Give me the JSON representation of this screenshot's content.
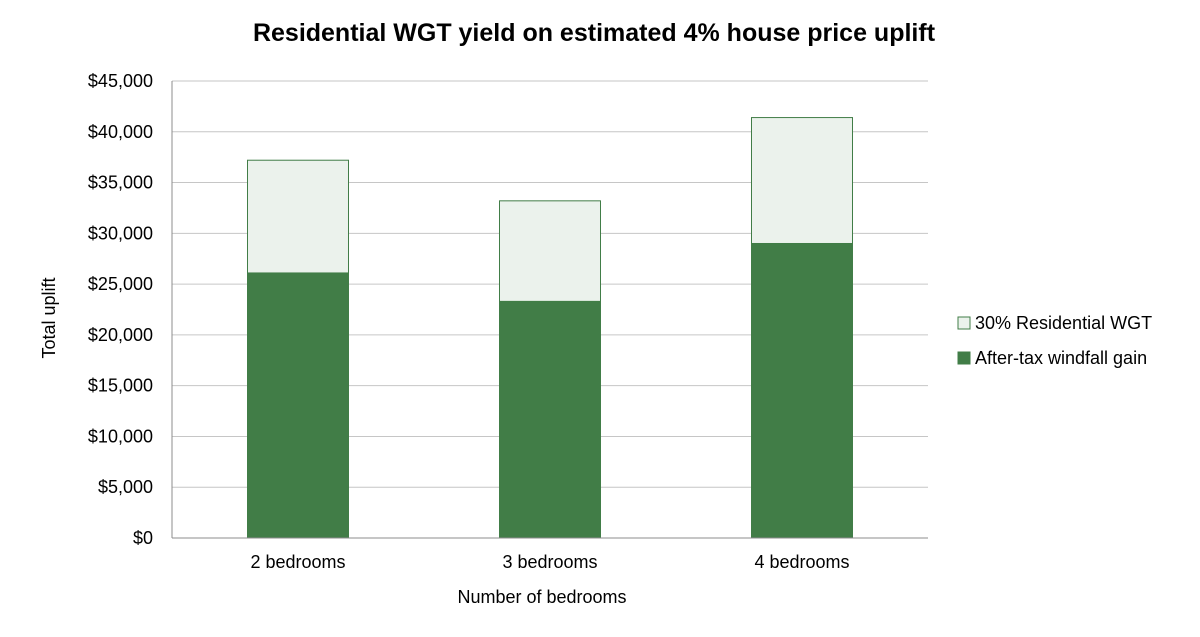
{
  "chart_data": {
    "type": "bar",
    "stacked": true,
    "title": "Residential WGT yield on estimated 4% house price uplift",
    "xlabel": "Number of bedrooms",
    "ylabel": "Total uplift",
    "categories": [
      "2 bedrooms",
      "3 bedrooms",
      "4 bedrooms"
    ],
    "series": [
      {
        "name": "After-tax windfall gain",
        "values": [
          26100,
          23300,
          29000
        ],
        "fill": "#417d47",
        "stroke": "#417d47"
      },
      {
        "name": "30% Residential WGT",
        "values": [
          11100,
          9900,
          12400
        ],
        "fill": "#ebf2ec",
        "stroke": "#417d47"
      }
    ],
    "ylim": [
      0,
      45000
    ],
    "yticks": [
      0,
      5000,
      10000,
      15000,
      20000,
      25000,
      30000,
      35000,
      40000,
      45000
    ],
    "ytick_labels": [
      "$0",
      "$5,000",
      "$10,000",
      "$15,000",
      "$20,000",
      "$25,000",
      "$30,000",
      "$35,000",
      "$40,000",
      "$45,000"
    ],
    "grid": true,
    "gridline_color": "#c6c6c6",
    "legend_position": "right",
    "legend_order": [
      "30% Residential WGT",
      "After-tax windfall gain"
    ]
  }
}
